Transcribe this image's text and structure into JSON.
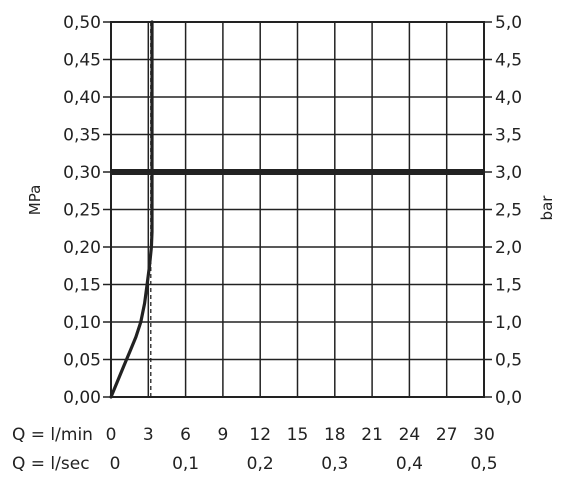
{
  "chart_data": {
    "type": "line",
    "left_axis": {
      "label": "MPa",
      "range": [
        0,
        0.5
      ],
      "ticks": [
        "0,00",
        "0,05",
        "0,10",
        "0,15",
        "0,20",
        "0,25",
        "0,30",
        "0,35",
        "0,40",
        "0,45",
        "0,50"
      ]
    },
    "right_axis": {
      "label": "bar",
      "range": [
        0,
        5
      ],
      "ticks": [
        "0,0",
        "0,5",
        "1,0",
        "1,5",
        "2,0",
        "2,5",
        "3,0",
        "3,5",
        "4,0",
        "4,5",
        "5,0"
      ]
    },
    "x_axis_lmin": {
      "label": "Q = l/min",
      "range": [
        0,
        30
      ],
      "ticks": [
        "0",
        "3",
        "6",
        "9",
        "12",
        "15",
        "18",
        "21",
        "24",
        "27",
        "30"
      ]
    },
    "x_axis_lsec": {
      "label": "Q = l/sec",
      "ticks": [
        {
          "value": 0,
          "label": "0"
        },
        {
          "value": 6,
          "label": "0,1"
        },
        {
          "value": 12,
          "label": "0,2"
        },
        {
          "value": 18,
          "label": "0,3"
        },
        {
          "value": 24,
          "label": "0,4"
        },
        {
          "value": 30,
          "label": "0,5"
        }
      ]
    },
    "grid": true,
    "reference_pressure": 0.3,
    "dashed_flow_marker": 3.2,
    "max_flow_line": 3.3,
    "series": [
      {
        "points": [
          [
            0,
            0
          ],
          [
            0.5,
            0.02
          ],
          [
            1.0,
            0.04
          ],
          [
            1.5,
            0.06
          ],
          [
            2.0,
            0.08
          ],
          [
            2.4,
            0.1
          ],
          [
            2.7,
            0.125
          ],
          [
            2.9,
            0.15
          ],
          [
            3.1,
            0.175
          ],
          [
            3.25,
            0.2
          ],
          [
            3.3,
            0.22
          ],
          [
            3.3,
            0.25
          ],
          [
            3.3,
            0.3
          ],
          [
            3.3,
            0.4
          ],
          [
            3.3,
            0.5
          ]
        ]
      }
    ]
  }
}
